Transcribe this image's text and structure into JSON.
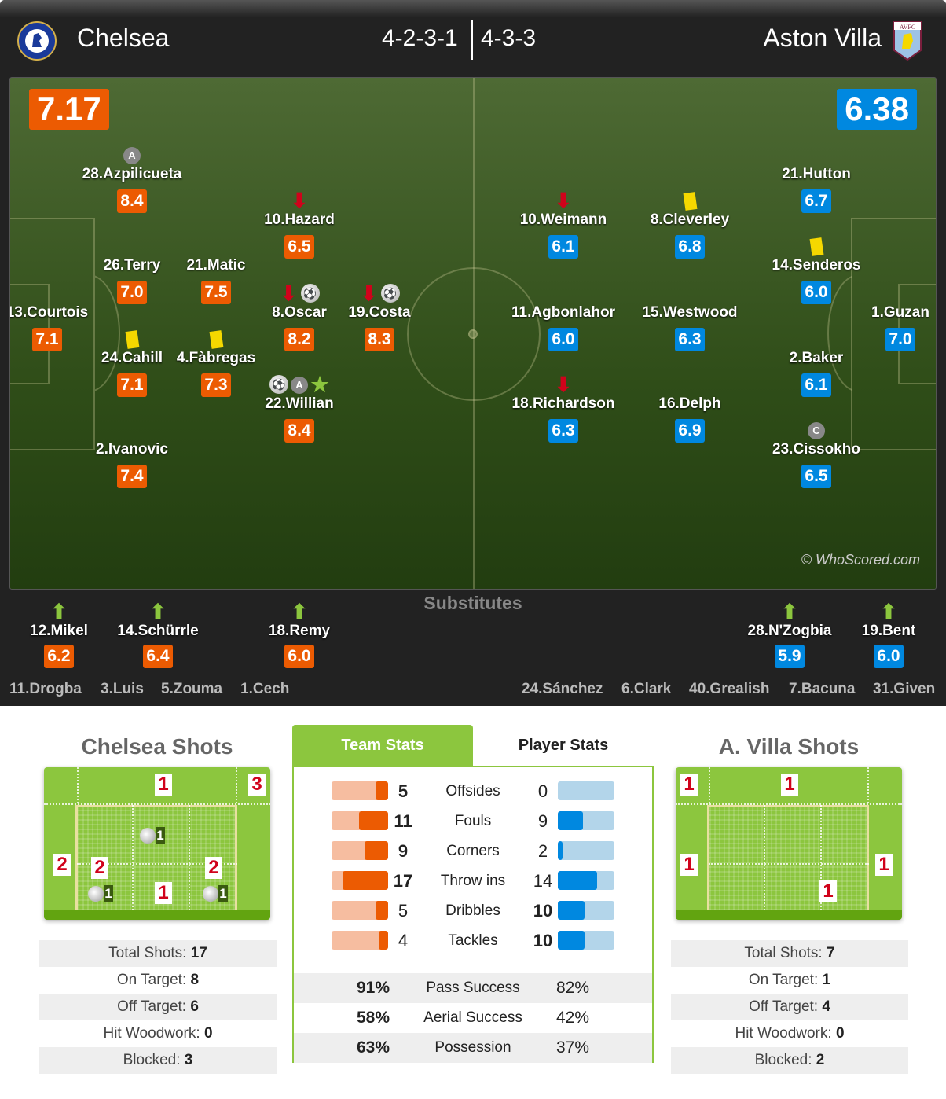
{
  "header": {
    "home_team": "Chelsea",
    "away_team": "Aston Villa",
    "home_formation": "4-2-3-1",
    "away_formation": "4-3-3",
    "home_crest": "CHELSEA FOOTBALL CLUB",
    "away_crest": "AVFC"
  },
  "colors": {
    "home": "#ec5b02",
    "away": "#0088e0",
    "accent": "#8cc63e"
  },
  "pitch": {
    "home_rating": "7.17",
    "away_rating": "6.38",
    "watermark": "© WhoScored.com"
  },
  "home_players": [
    {
      "name": "28.Azpilicueta",
      "rating": "8.4",
      "icons": [
        "assist-icon"
      ]
    },
    {
      "name": "10.Hazard",
      "rating": "6.5",
      "icons": [
        "sub-off-arrow-icon"
      ]
    },
    {
      "name": "26.Terry",
      "rating": "7.0",
      "icons": []
    },
    {
      "name": "21.Matic",
      "rating": "7.5",
      "icons": []
    },
    {
      "name": "13.Courtois",
      "rating": "7.1",
      "icons": []
    },
    {
      "name": "8.Oscar",
      "rating": "8.2",
      "icons": [
        "sub-off-arrow-icon",
        "goal-icon"
      ]
    },
    {
      "name": "19.Costa",
      "rating": "8.3",
      "icons": [
        "sub-off-arrow-icon",
        "goal-icon"
      ]
    },
    {
      "name": "24.Cahill",
      "rating": "7.1",
      "icons": [
        "yellow-card-icon"
      ]
    },
    {
      "name": "4.Fàbregas",
      "rating": "7.3",
      "icons": [
        "yellow-card-icon"
      ]
    },
    {
      "name": "22.Willian",
      "rating": "8.4",
      "icons": [
        "goal-icon",
        "assist-icon",
        "man-of-match-star-icon"
      ]
    },
    {
      "name": "2.Ivanovic",
      "rating": "7.4",
      "icons": []
    }
  ],
  "away_players": [
    {
      "name": "10.Weimann",
      "rating": "6.1",
      "icons": [
        "sub-off-arrow-icon"
      ]
    },
    {
      "name": "8.Cleverley",
      "rating": "6.8",
      "icons": [
        "yellow-card-icon"
      ]
    },
    {
      "name": "21.Hutton",
      "rating": "6.7",
      "icons": []
    },
    {
      "name": "14.Senderos",
      "rating": "6.0",
      "icons": [
        "yellow-card-icon"
      ]
    },
    {
      "name": "11.Agbonlahor",
      "rating": "6.0",
      "icons": []
    },
    {
      "name": "15.Westwood",
      "rating": "6.3",
      "icons": []
    },
    {
      "name": "1.Guzan",
      "rating": "7.0",
      "icons": []
    },
    {
      "name": "2.Baker",
      "rating": "6.1",
      "icons": []
    },
    {
      "name": "18.Richardson",
      "rating": "6.3",
      "icons": [
        "sub-off-arrow-icon"
      ]
    },
    {
      "name": "16.Delph",
      "rating": "6.9",
      "icons": []
    },
    {
      "name": "23.Cissokho",
      "rating": "6.5",
      "icons": [
        "captain-icon"
      ]
    }
  ],
  "substitutes": {
    "title": "Substitutes",
    "home_used": [
      {
        "name": "12.Mikel",
        "rating": "6.2"
      },
      {
        "name": "14.Schürrle",
        "rating": "6.4"
      },
      {
        "name": "18.Remy",
        "rating": "6.0"
      }
    ],
    "away_used": [
      {
        "name": "28.N'Zogbia",
        "rating": "5.9"
      },
      {
        "name": "19.Bent",
        "rating": "6.0"
      }
    ],
    "home_unused": [
      "11.Drogba",
      "3.Luis",
      "5.Zouma",
      "1.Cech"
    ],
    "away_unused": [
      "24.Sánchez",
      "6.Clark",
      "40.Grealish",
      "7.Bacuna",
      "31.Given"
    ]
  },
  "home_shots": {
    "title": "Chelsea Shots",
    "zones": [
      "1",
      "3",
      "2",
      "2",
      "2",
      "1"
    ],
    "goals": [
      "1",
      "1",
      "1"
    ],
    "stats": [
      {
        "label": "Total Shots:",
        "value": "17"
      },
      {
        "label": "On Target:",
        "value": "8"
      },
      {
        "label": "Off Target:",
        "value": "6"
      },
      {
        "label": "Hit Woodwork:",
        "value": "0"
      },
      {
        "label": "Blocked:",
        "value": "3"
      }
    ]
  },
  "away_shots": {
    "title": "A. Villa Shots",
    "zones": [
      "1",
      "1",
      "1",
      "1",
      "1"
    ],
    "stats": [
      {
        "label": "Total Shots:",
        "value": "7"
      },
      {
        "label": "On Target:",
        "value": "1"
      },
      {
        "label": "Off Target:",
        "value": "4"
      },
      {
        "label": "Hit Woodwork:",
        "value": "0"
      },
      {
        "label": "Blocked:",
        "value": "2"
      }
    ]
  },
  "tabs": {
    "team": "Team Stats",
    "player": "Player Stats",
    "active": "team"
  },
  "team_stats": [
    {
      "label": "Offsides",
      "home": "5",
      "away": "0",
      "home_fill": 0.22,
      "away_fill": 0.0
    },
    {
      "label": "Fouls",
      "home": "11",
      "away": "9",
      "home_fill": 0.52,
      "away_fill": 0.45
    },
    {
      "label": "Corners",
      "home": "9",
      "away": "2",
      "home_fill": 0.41,
      "away_fill": 0.09
    },
    {
      "label": "Throw ins",
      "home": "17",
      "away": "14",
      "home_fill": 0.8,
      "away_fill": 0.7
    },
    {
      "label": "Dribbles",
      "home": "5",
      "away": "10",
      "home_fill": 0.22,
      "away_fill": 0.47
    },
    {
      "label": "Tackles",
      "home": "4",
      "away": "10",
      "home_fill": 0.17,
      "away_fill": 0.47
    }
  ],
  "pct_stats": [
    {
      "label": "Pass Success",
      "home": "91%",
      "away": "82%"
    },
    {
      "label": "Aerial Success",
      "home": "58%",
      "away": "42%"
    },
    {
      "label": "Possession",
      "home": "63%",
      "away": "37%"
    }
  ]
}
